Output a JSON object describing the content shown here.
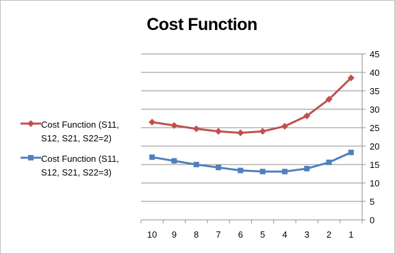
{
  "chart_data": {
    "type": "line",
    "title": "Cost Function",
    "categories": [
      "10",
      "9",
      "8",
      "7",
      "6",
      "5",
      "4",
      "3",
      "2",
      "1"
    ],
    "series": [
      {
        "name": "Cost Function (S11, S12, S21, S22=2)",
        "color": "#c0504d",
        "marker": "diamond",
        "values": [
          26.5,
          25.6,
          24.7,
          24.0,
          23.6,
          24.0,
          25.4,
          28.2,
          32.7,
          38.5
        ]
      },
      {
        "name": "Cost Function (S11, S12, S21, S22=3)",
        "color": "#4f81bd",
        "marker": "square",
        "values": [
          17.0,
          16.0,
          15.0,
          14.2,
          13.4,
          13.1,
          13.1,
          13.9,
          15.6,
          18.3
        ]
      }
    ],
    "y_ticks": [
      "0",
      "5",
      "10",
      "15",
      "20",
      "25",
      "30",
      "35",
      "40",
      "45"
    ],
    "ylim": [
      0,
      45
    ],
    "y_axis_position": "right",
    "grid": true,
    "legend_position": "left"
  }
}
